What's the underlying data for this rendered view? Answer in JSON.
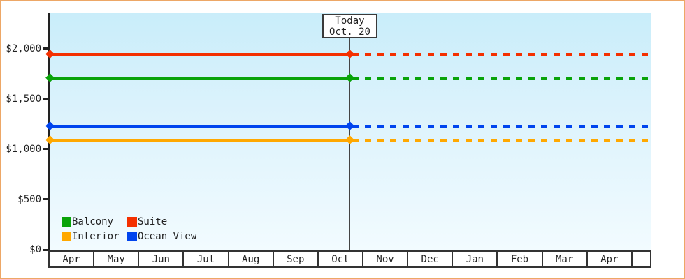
{
  "window": {
    "border_color": "#eda766",
    "background": "#ffffff"
  },
  "today_annotation": {
    "line1": "Today",
    "line2": "Oct. 20"
  },
  "y_axis": {
    "ticks": [
      {
        "label": "$2,000",
        "value": 2000
      },
      {
        "label": "$1,500",
        "value": 1500
      },
      {
        "label": "$1,000",
        "value": 1000
      },
      {
        "label": "$500",
        "value": 500
      },
      {
        "label": "$0",
        "value": 0
      }
    ]
  },
  "x_axis": {
    "months": [
      "Apr",
      "May",
      "Jun",
      "Jul",
      "Aug",
      "Sep",
      "Oct",
      "Nov",
      "Dec",
      "Jan",
      "Feb",
      "Mar",
      "Apr"
    ]
  },
  "legend": {
    "rows": [
      [
        {
          "label": "Balcony",
          "color": "#09a309"
        },
        {
          "label": "Suite",
          "color": "#f43000"
        }
      ],
      [
        {
          "label": "Interior",
          "color": "#ffa800"
        },
        {
          "label": "Ocean View",
          "color": "#0044ee"
        }
      ]
    ]
  },
  "chart_data": {
    "type": "line",
    "title": "",
    "xlabel": "",
    "ylabel": "",
    "x": [
      "Apr",
      "May",
      "Jun",
      "Jul",
      "Aug",
      "Sep",
      "Oct",
      "Nov",
      "Dec",
      "Jan",
      "Feb",
      "Mar",
      "Apr"
    ],
    "ylim": [
      0,
      2360
    ],
    "y_ticks": [
      0,
      500,
      1000,
      1500,
      2000
    ],
    "grid": false,
    "legend_position": "bottom-left",
    "today": {
      "label": "Today",
      "date": "Oct. 20",
      "month": "Oct"
    },
    "annotation_note": "lines are solid before today marker, dotted after",
    "series": [
      {
        "name": "Suite",
        "color": "#f43000",
        "value": 1945,
        "shape": "constant"
      },
      {
        "name": "Balcony",
        "color": "#09a309",
        "value": 1710,
        "shape": "constant"
      },
      {
        "name": "Ocean View",
        "color": "#0044ee",
        "value": 1230,
        "shape": "constant"
      },
      {
        "name": "Interior",
        "color": "#ffa800",
        "value": 1090,
        "shape": "constant"
      }
    ]
  }
}
